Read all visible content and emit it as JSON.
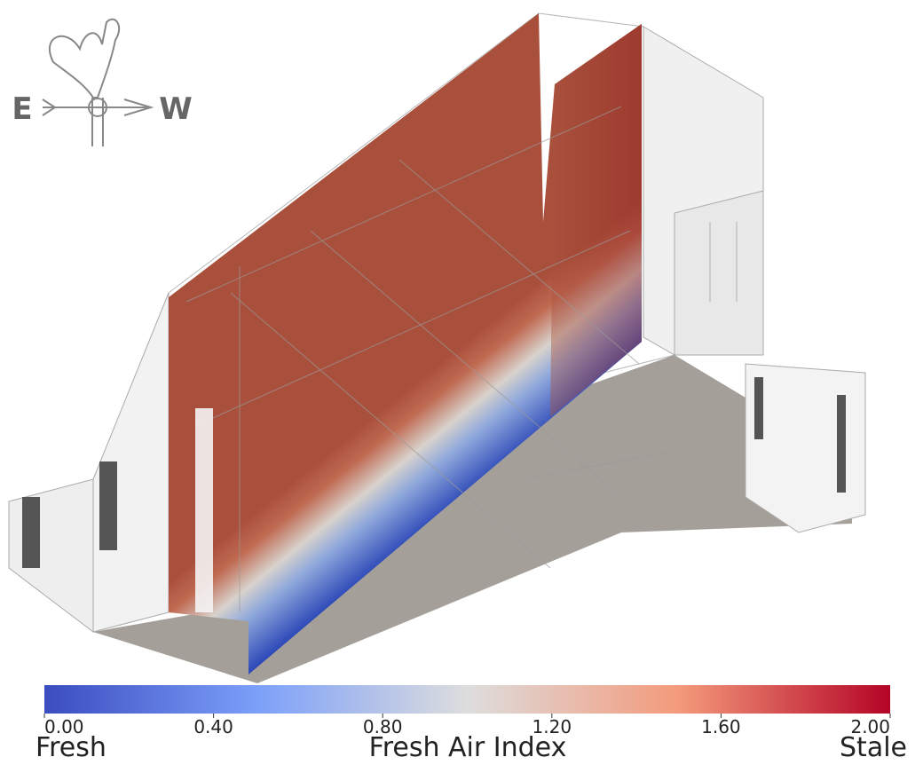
{
  "vane": {
    "east": "E",
    "west": "W"
  },
  "colorbar": {
    "range": [
      0,
      2
    ],
    "ticks": [
      {
        "value": 0,
        "label": "0.00"
      },
      {
        "value": 0.4,
        "label": "0.40"
      },
      {
        "value": 0.8,
        "label": "0.80"
      },
      {
        "value": 1.2,
        "label": "1.20"
      },
      {
        "value": 1.6,
        "label": "1.60"
      },
      {
        "value": 2,
        "label": "2.00"
      }
    ],
    "title": "Fresh Air Index",
    "low_label": "Fresh",
    "high_label": "Stale"
  }
}
